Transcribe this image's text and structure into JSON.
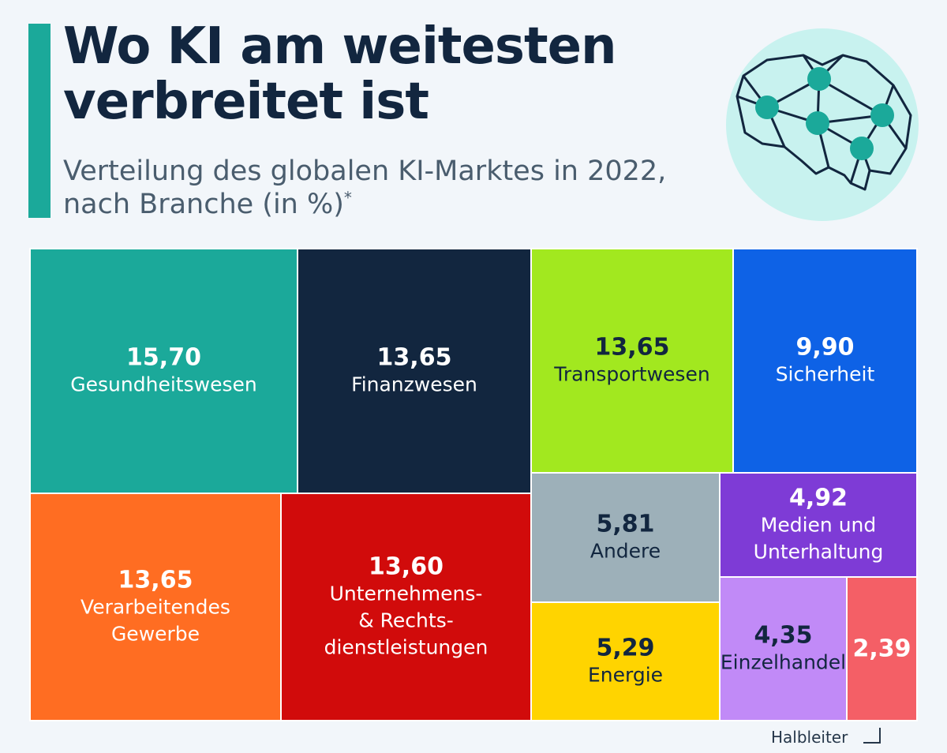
{
  "header": {
    "title_line1": "Wo KI am weitesten",
    "title_line2": "verbreitet ist",
    "subtitle_line1": "Verteilung des globalen KI-Marktes in 2022,",
    "subtitle_line2": "nach Branche (in %)",
    "subtitle_mark": "*"
  },
  "icon": {
    "name": "brain-network-icon",
    "circle_color": "#c8f2ef",
    "node_color": "#1ba99a",
    "line_color": "#12263f"
  },
  "colors": {
    "background": "#f2f6fa",
    "accent": "#1ba99a",
    "title": "#12263f"
  },
  "chart_data": {
    "type": "treemap",
    "unit": "%",
    "items": [
      {
        "key": "gesundheit",
        "category": "Gesundheitswesen",
        "label_lines": [
          "Gesundheitswesen"
        ],
        "value": 15.7,
        "value_label": "15,70",
        "color": "#1ba99a",
        "text_color": "#ffffff"
      },
      {
        "key": "finanz",
        "category": "Finanzwesen",
        "label_lines": [
          "Finanzwesen"
        ],
        "value": 13.65,
        "value_label": "13,65",
        "color": "#12263f",
        "text_color": "#ffffff"
      },
      {
        "key": "transport",
        "category": "Transportwesen",
        "label_lines": [
          "Transportwesen"
        ],
        "value": 13.65,
        "value_label": "13,65",
        "color": "#a2e81f",
        "text_color": "#12263f"
      },
      {
        "key": "sicherheit",
        "category": "Sicherheit",
        "label_lines": [
          "Sicherheit"
        ],
        "value": 9.9,
        "value_label": "9,90",
        "color": "#0e62e6",
        "text_color": "#ffffff"
      },
      {
        "key": "verarbeitend",
        "category": "Verarbeitendes Gewerbe",
        "label_lines": [
          "Verarbeitendes",
          "Gewerbe"
        ],
        "value": 13.65,
        "value_label": "13,65",
        "color": "#ff6d22",
        "text_color": "#ffffff"
      },
      {
        "key": "unternehmen",
        "category": "Unternehmens- & Rechtsdienstleistungen",
        "label_lines": [
          "Unternehmens-",
          "& Rechts-",
          "dienstleistungen"
        ],
        "value": 13.6,
        "value_label": "13,60",
        "color": "#d10b0b",
        "text_color": "#ffffff"
      },
      {
        "key": "andere",
        "category": "Andere",
        "label_lines": [
          "Andere"
        ],
        "value": 5.81,
        "value_label": "5,81",
        "color": "#9db0b9",
        "text_color": "#12263f"
      },
      {
        "key": "medien",
        "category": "Medien und Unterhaltung",
        "label_lines": [
          "Medien und",
          "Unterhaltung"
        ],
        "value": 4.92,
        "value_label": "4,92",
        "color": "#7e3bd6",
        "text_color": "#ffffff"
      },
      {
        "key": "energie",
        "category": "Energie",
        "label_lines": [
          "Energie"
        ],
        "value": 5.29,
        "value_label": "5,29",
        "color": "#ffd400",
        "text_color": "#12263f"
      },
      {
        "key": "einzelhandel",
        "category": "Einzelhandel",
        "label_lines": [
          "Einzelhandel"
        ],
        "value": 4.35,
        "value_label": "4,35",
        "color": "#c18af7",
        "text_color": "#12263f"
      },
      {
        "key": "halbleiter",
        "category": "Halbleiter",
        "label_lines": [],
        "value": 2.39,
        "value_label": "2,39",
        "color": "#f45f66",
        "text_color": "#ffffff"
      }
    ],
    "callout": {
      "text": "Halbleiter",
      "target": "halbleiter"
    }
  }
}
